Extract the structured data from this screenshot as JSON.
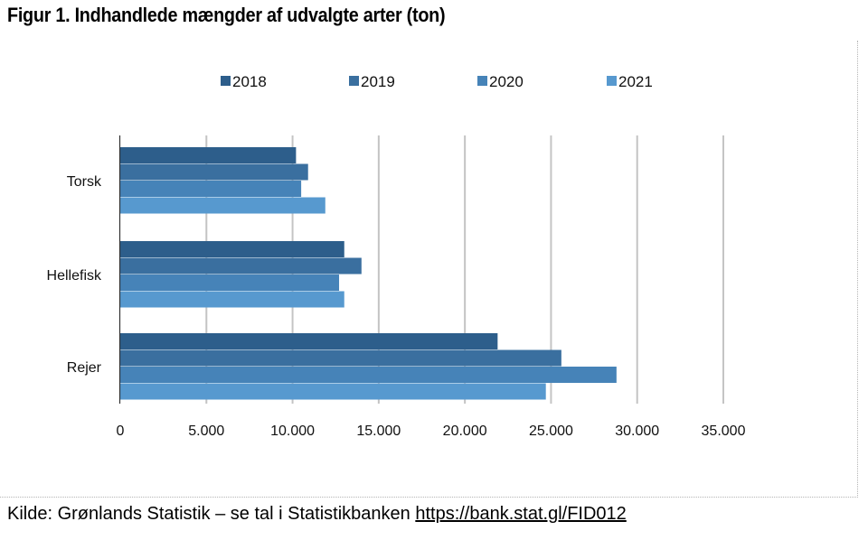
{
  "title": "Figur 1. Indhandlede mængder af udvalgte arter (ton)",
  "source": {
    "text": "Kilde: Grønlands Statistik – se tal i Statistikbanken ",
    "link": "https://bank.stat.gl/FID012"
  },
  "chart_data": {
    "type": "bar",
    "orientation": "horizontal",
    "categories": [
      "Torsk",
      "Hellefisk",
      "Rejer"
    ],
    "series": [
      {
        "name": "2018",
        "color": "#2d5e8b",
        "values": [
          10200,
          13000,
          21900
        ]
      },
      {
        "name": "2019",
        "color": "#3a6f9f",
        "values": [
          10900,
          14000,
          25600
        ]
      },
      {
        "name": "2020",
        "color": "#4683b8",
        "values": [
          10500,
          12700,
          28800
        ]
      },
      {
        "name": "2021",
        "color": "#5799cf",
        "values": [
          11900,
          13000,
          24700
        ]
      }
    ],
    "xlim": [
      0,
      35000
    ],
    "xticks": [
      0,
      5000,
      10000,
      15000,
      20000,
      25000,
      30000,
      35000
    ],
    "xtick_labels": [
      "0",
      "5.000",
      "10.000",
      "15.000",
      "20.000",
      "25.000",
      "30.000",
      "35.000"
    ],
    "grid": true,
    "legend_position": "top"
  }
}
